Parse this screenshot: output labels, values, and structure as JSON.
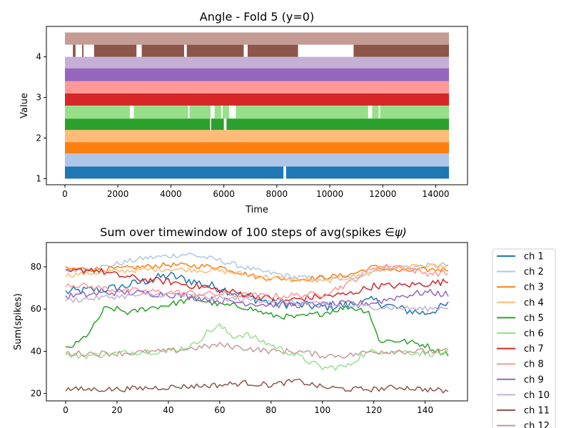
{
  "chart_data": [
    {
      "type": "line",
      "title": "Angle - Fold 5 (y=0)",
      "xlabel": "Time",
      "ylabel": "Value",
      "xlim": [
        -700,
        15200
      ],
      "ylim": [
        0.85,
        4.75
      ],
      "xticks": [
        0,
        2000,
        4000,
        6000,
        8000,
        10000,
        12000,
        14000
      ],
      "yticks": [
        1,
        2,
        3,
        4
      ],
      "grid": false,
      "legend": "none",
      "x_range": [
        0,
        14500
      ],
      "series": [
        {
          "color": "#1f77b4",
          "band": [
            1.0,
            1.3
          ],
          "gaps": [
            [
              8250,
              8350
            ]
          ]
        },
        {
          "color": "#aec7e8",
          "band": [
            1.3,
            1.62
          ],
          "gaps": []
        },
        {
          "color": "#ff7f0e",
          "band": [
            1.62,
            1.9
          ],
          "gaps": []
        },
        {
          "color": "#ffbb78",
          "band": [
            1.9,
            2.2
          ],
          "gaps": []
        },
        {
          "color": "#2ca02c",
          "band": [
            2.2,
            2.48
          ],
          "gaps": [
            [
              5480,
              5520
            ],
            [
              6000,
              6100
            ]
          ]
        },
        {
          "color": "#98df8a",
          "band": [
            2.48,
            2.8
          ],
          "gaps": [
            [
              2450,
              2600
            ],
            [
              4650,
              4700
            ],
            [
              5500,
              5650
            ],
            [
              5900,
              5950
            ],
            [
              6200,
              6450
            ],
            [
              11450,
              11600
            ],
            [
              11850,
              11900
            ]
          ]
        },
        {
          "color": "#d62728",
          "band": [
            2.8,
            3.1
          ],
          "gaps": []
        },
        {
          "color": "#ff9896",
          "band": [
            3.1,
            3.4
          ],
          "gaps": []
        },
        {
          "color": "#9467bd",
          "band": [
            3.4,
            3.72
          ],
          "gaps": []
        },
        {
          "color": "#c5b0d5",
          "band": [
            3.72,
            4.0
          ],
          "gaps": []
        },
        {
          "color": "#8c564b",
          "band": [
            4.0,
            4.3
          ],
          "gaps": [
            [
              0,
              300
            ],
            [
              400,
              650
            ],
            [
              700,
              1100
            ],
            [
              2700,
              2900
            ],
            [
              4500,
              4600
            ],
            [
              6750,
              6900
            ],
            [
              8800,
              10900
            ],
            [
              14500,
              14500
            ]
          ]
        },
        {
          "color": "#c49c94",
          "band": [
            4.3,
            4.6
          ],
          "gaps": []
        }
      ]
    },
    {
      "type": "line",
      "title": "Sum over timewindow of 100 steps of avg(spikes ",
      "title_math": "∈ψ)",
      "xlabel": "",
      "ylabel": "Sum(spikes)",
      "xlim": [
        -7.5,
        156.5
      ],
      "ylim": [
        16.5,
        91.5
      ],
      "xticks": [
        0,
        20,
        40,
        60,
        80,
        100,
        120,
        140
      ],
      "yticks": [
        20,
        40,
        60,
        80
      ],
      "grid": false,
      "legend": "outside-right",
      "x_count": 150,
      "series": [
        {
          "name": "ch 1",
          "color": "#1f77b4",
          "keys": [
            [
              0,
              68
            ],
            [
              20,
              70
            ],
            [
              30,
              73
            ],
            [
              40,
              76
            ],
            [
              50,
              73
            ],
            [
              60,
              70
            ],
            [
              70,
              66
            ],
            [
              80,
              63
            ],
            [
              90,
              62
            ],
            [
              100,
              61
            ],
            [
              110,
              62
            ],
            [
              120,
              64
            ],
            [
              130,
              60
            ],
            [
              140,
              58
            ],
            [
              149,
              62
            ]
          ],
          "noise": 2.2
        },
        {
          "name": "ch 2",
          "color": "#aec7e8",
          "keys": [
            [
              0,
              78
            ],
            [
              15,
              80
            ],
            [
              30,
              84
            ],
            [
              48,
              86
            ],
            [
              60,
              83
            ],
            [
              75,
              78
            ],
            [
              90,
              75
            ],
            [
              105,
              74
            ],
            [
              115,
              76
            ],
            [
              125,
              80
            ],
            [
              135,
              80
            ],
            [
              149,
              81
            ]
          ],
          "noise": 1.3
        },
        {
          "name": "ch 3",
          "color": "#ff7f0e",
          "keys": [
            [
              0,
              79
            ],
            [
              20,
              79
            ],
            [
              40,
              81
            ],
            [
              60,
              80
            ],
            [
              75,
              75
            ],
            [
              90,
              74
            ],
            [
              100,
              75
            ],
            [
              110,
              76
            ],
            [
              120,
              80
            ],
            [
              130,
              78
            ],
            [
              149,
              79
            ]
          ],
          "noise": 1.2
        },
        {
          "name": "ch 4",
          "color": "#ffbb78",
          "keys": [
            [
              0,
              76
            ],
            [
              20,
              78
            ],
            [
              40,
              79
            ],
            [
              60,
              78
            ],
            [
              80,
              75
            ],
            [
              100,
              73
            ],
            [
              115,
              76
            ],
            [
              125,
              80
            ],
            [
              140,
              80
            ],
            [
              149,
              80
            ]
          ],
          "noise": 1.2
        },
        {
          "name": "ch 5",
          "color": "#2ca02c",
          "keys": [
            [
              0,
              41
            ],
            [
              5,
              44
            ],
            [
              10,
              50
            ],
            [
              15,
              60
            ],
            [
              20,
              60
            ],
            [
              25,
              58
            ],
            [
              30,
              60
            ],
            [
              40,
              62
            ],
            [
              50,
              65
            ],
            [
              60,
              62
            ],
            [
              70,
              61
            ],
            [
              80,
              57
            ],
            [
              90,
              56
            ],
            [
              100,
              58
            ],
            [
              110,
              61
            ],
            [
              118,
              59
            ],
            [
              122,
              45
            ],
            [
              130,
              45
            ],
            [
              140,
              43
            ],
            [
              145,
              40
            ],
            [
              149,
              39
            ]
          ],
          "noise": 1.4
        },
        {
          "name": "ch 6",
          "color": "#98df8a",
          "keys": [
            [
              0,
              38
            ],
            [
              10,
              38
            ],
            [
              20,
              39
            ],
            [
              30,
              40
            ],
            [
              40,
              40
            ],
            [
              50,
              43
            ],
            [
              55,
              49
            ],
            [
              60,
              52
            ],
            [
              65,
              47
            ],
            [
              70,
              48
            ],
            [
              80,
              43
            ],
            [
              90,
              38
            ],
            [
              100,
              32
            ],
            [
              110,
              33
            ],
            [
              115,
              38
            ],
            [
              120,
              40
            ],
            [
              130,
              40
            ],
            [
              140,
              39
            ],
            [
              149,
              39
            ]
          ],
          "noise": 1.5
        },
        {
          "name": "ch 7",
          "color": "#d62728",
          "keys": [
            [
              0,
              77
            ],
            [
              10,
              79
            ],
            [
              20,
              76
            ],
            [
              30,
              74
            ],
            [
              40,
              73
            ],
            [
              55,
              70
            ],
            [
              70,
              67
            ],
            [
              85,
              64
            ],
            [
              100,
              66
            ],
            [
              110,
              67
            ],
            [
              120,
              71
            ],
            [
              130,
              71
            ],
            [
              140,
              72
            ],
            [
              149,
              73
            ]
          ],
          "noise": 1.6
        },
        {
          "name": "ch 8",
          "color": "#ff9896",
          "keys": [
            [
              0,
              72
            ],
            [
              20,
              69
            ],
            [
              40,
              68
            ],
            [
              60,
              67
            ],
            [
              80,
              66
            ],
            [
              100,
              67
            ],
            [
              110,
              72
            ],
            [
              120,
              80
            ],
            [
              130,
              80
            ],
            [
              140,
              77
            ],
            [
              149,
              77
            ]
          ],
          "noise": 1.5
        },
        {
          "name": "ch 9",
          "color": "#9467bd",
          "keys": [
            [
              0,
              66
            ],
            [
              20,
              68
            ],
            [
              40,
              67
            ],
            [
              60,
              64
            ],
            [
              80,
              62
            ],
            [
              100,
              62
            ],
            [
              120,
              63
            ],
            [
              130,
              66
            ],
            [
              140,
              68
            ],
            [
              149,
              67
            ]
          ],
          "noise": 1.6
        },
        {
          "name": "ch 10",
          "color": "#c5b0d5",
          "keys": [
            [
              0,
              64
            ],
            [
              20,
              66
            ],
            [
              40,
              67
            ],
            [
              60,
              65
            ],
            [
              80,
              64
            ],
            [
              100,
              62
            ],
            [
              120,
              61
            ],
            [
              140,
              60
            ],
            [
              149,
              61
            ]
          ],
          "noise": 1.3
        },
        {
          "name": "ch 11",
          "color": "#8c564b",
          "keys": [
            [
              0,
              22
            ],
            [
              20,
              22
            ],
            [
              40,
              23
            ],
            [
              60,
              24
            ],
            [
              70,
              25
            ],
            [
              80,
              24
            ],
            [
              90,
              26
            ],
            [
              100,
              23
            ],
            [
              110,
              22
            ],
            [
              120,
              22
            ],
            [
              130,
              23
            ],
            [
              140,
              22
            ],
            [
              149,
              21
            ]
          ],
          "noise": 1.3
        },
        {
          "name": "ch 12",
          "color": "#c49c94",
          "keys": [
            [
              0,
              39
            ],
            [
              20,
              39
            ],
            [
              40,
              40
            ],
            [
              60,
              43
            ],
            [
              80,
              40
            ],
            [
              90,
              40
            ],
            [
              100,
              38
            ],
            [
              110,
              38
            ],
            [
              120,
              40
            ],
            [
              140,
              40
            ],
            [
              149,
              40
            ]
          ],
          "noise": 1.4
        }
      ]
    }
  ]
}
